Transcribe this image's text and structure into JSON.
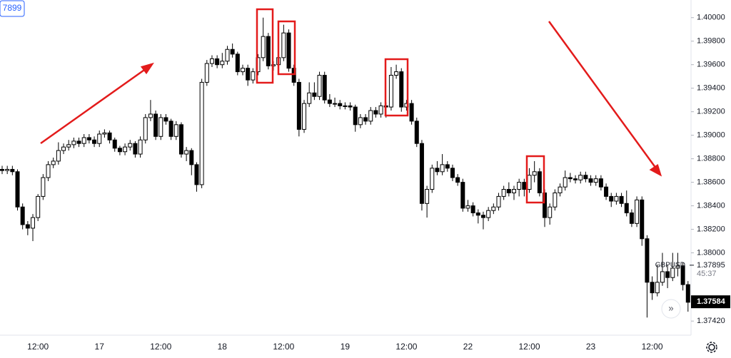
{
  "chart_data": {
    "type": "candlestick",
    "symbol": "GBPUSD",
    "symbol_price": {
      "value": 1.37895,
      "label": "1.37895"
    },
    "countdown": "45:37",
    "last_price": {
      "value": 1.37584,
      "label": "1.37584"
    },
    "corner_label": "7899",
    "up_color": "#ffffff",
    "down_color": "#000000",
    "edge_color": "#000000",
    "ylim": [
      1.373,
      1.4015
    ],
    "yticks": [
      {
        "value": 1.4,
        "label": "1.40000"
      },
      {
        "value": 1.398,
        "label": "1.39800"
      },
      {
        "value": 1.396,
        "label": "1.39600"
      },
      {
        "value": 1.394,
        "label": "1.39400"
      },
      {
        "value": 1.392,
        "label": "1.39200"
      },
      {
        "value": 1.39,
        "label": "1.39000"
      },
      {
        "value": 1.388,
        "label": "1.38800"
      },
      {
        "value": 1.386,
        "label": "1.38600"
      },
      {
        "value": 1.384,
        "label": "1.38400"
      },
      {
        "value": 1.382,
        "label": "1.38200"
      },
      {
        "value": 1.38,
        "label": "1.38000"
      },
      {
        "value": 1.3742,
        "label": "1.37420"
      }
    ],
    "categories": [
      null,
      null,
      null,
      null,
      null,
      null,
      null,
      "12:00",
      null,
      null,
      null,
      null,
      null,
      null,
      null,
      null,
      null,
      null,
      null,
      "17",
      null,
      null,
      null,
      null,
      null,
      null,
      null,
      null,
      null,
      null,
      null,
      "12:00",
      null,
      null,
      null,
      null,
      null,
      null,
      null,
      null,
      null,
      null,
      null,
      "18",
      null,
      null,
      null,
      null,
      null,
      null,
      null,
      null,
      null,
      null,
      null,
      "12:00",
      null,
      null,
      null,
      null,
      null,
      null,
      null,
      null,
      null,
      null,
      null,
      "19",
      null,
      null,
      null,
      null,
      null,
      null,
      null,
      null,
      null,
      null,
      null,
      "12:00",
      null,
      null,
      null,
      null,
      null,
      null,
      null,
      null,
      null,
      null,
      null,
      "22",
      null,
      null,
      null,
      null,
      null,
      null,
      null,
      null,
      null,
      null,
      null,
      "12:00",
      null,
      null,
      null,
      null,
      null,
      null,
      null,
      null,
      null,
      null,
      null,
      "23",
      null,
      null,
      null,
      null,
      null,
      null,
      null,
      null,
      null,
      null,
      null,
      "12:00",
      null,
      null,
      null,
      null,
      null,
      null,
      null
    ],
    "open": [
      1.3871,
      1.387,
      1.3871,
      1.3869,
      1.3839,
      1.3824,
      1.3821,
      1.383,
      1.3848,
      1.3864,
      1.3875,
      1.3878,
      1.3887,
      1.389,
      1.3892,
      1.3895,
      1.3893,
      1.3898,
      1.3896,
      1.3893,
      1.3901,
      1.3902,
      1.3896,
      1.3889,
      1.3886,
      1.389,
      1.3893,
      1.3884,
      1.3896,
      1.3915,
      1.3918,
      1.3899,
      1.3915,
      1.3912,
      1.3899,
      1.3909,
      1.3884,
      1.3887,
      1.3875,
      1.3858,
      1.3945,
      1.3961,
      1.3965,
      1.396,
      1.3963,
      1.3973,
      1.3969,
      1.3954,
      1.3957,
      1.3947,
      1.3954,
      1.3966,
      1.3984,
      1.3959,
      1.396,
      1.3966,
      1.3987,
      1.3957,
      1.3945,
      1.3905,
      1.3927,
      1.3936,
      1.3933,
      1.3951,
      1.393,
      1.3927,
      1.3927,
      1.3925,
      1.3925,
      1.3924,
      1.3909,
      1.3915,
      1.3912,
      1.3921,
      1.3918,
      1.3925,
      1.3924,
      1.3951,
      1.3954,
      1.3924,
      1.3927,
      1.3912,
      1.3893,
      1.3842,
      1.3854,
      1.3872,
      1.3869,
      1.3875,
      1.3872,
      1.3864,
      1.386,
      1.3838,
      1.384,
      1.3834,
      1.3832,
      1.383,
      1.3836,
      1.3839,
      1.3848,
      1.3854,
      1.3851,
      1.3854,
      1.386,
      1.3854,
      1.3866,
      1.3869,
      1.3851,
      1.383,
      1.3839,
      1.3851,
      1.3856,
      1.3864,
      1.3863,
      1.3862,
      1.3866,
      1.3863,
      1.386,
      1.3863,
      1.3856,
      1.3848,
      1.3844,
      1.3848,
      1.3842,
      1.3834,
      1.3825,
      1.3845,
      1.3812,
      1.3775,
      1.3766,
      1.3775,
      1.3784,
      1.3779,
      1.3787,
      1.3789,
      1.3773
    ],
    "high": [
      1.3874,
      1.3874,
      1.3874,
      1.3871,
      1.3842,
      1.3827,
      1.3833,
      1.385,
      1.3867,
      1.3878,
      1.3881,
      1.3894,
      1.3893,
      1.3896,
      1.3898,
      1.3898,
      1.3901,
      1.3901,
      1.3899,
      1.3904,
      1.3905,
      1.3904,
      1.3898,
      1.3891,
      1.3893,
      1.3896,
      1.3895,
      1.3899,
      1.3918,
      1.393,
      1.3921,
      1.3918,
      1.3918,
      1.3914,
      1.3912,
      1.3911,
      1.389,
      1.3889,
      1.3877,
      1.3948,
      1.3964,
      1.3968,
      1.3968,
      1.397,
      1.3976,
      1.3978,
      1.3971,
      1.396,
      1.396,
      1.3957,
      1.3969,
      1.4,
      1.3987,
      1.3963,
      1.3969,
      1.3994,
      1.399,
      1.396,
      1.3948,
      1.393,
      1.3945,
      1.3945,
      1.3954,
      1.3954,
      1.3935,
      1.3932,
      1.393,
      1.3928,
      1.3928,
      1.3926,
      1.3918,
      1.3918,
      1.3924,
      1.3924,
      1.3928,
      1.3928,
      1.3958,
      1.396,
      1.3957,
      1.393,
      1.393,
      1.3915,
      1.3896,
      1.3857,
      1.3875,
      1.3878,
      1.3884,
      1.3878,
      1.3875,
      1.3867,
      1.3863,
      1.3845,
      1.3843,
      1.3837,
      1.3835,
      1.3839,
      1.3842,
      1.3851,
      1.3857,
      1.386,
      1.3857,
      1.3863,
      1.3863,
      1.3872,
      1.3878,
      1.3872,
      1.3854,
      1.3842,
      1.3854,
      1.3859,
      1.387,
      1.3868,
      1.3866,
      1.3869,
      1.3869,
      1.3866,
      1.3866,
      1.3866,
      1.3859,
      1.3851,
      1.3851,
      1.3851,
      1.3853,
      1.3837,
      1.3848,
      1.3848,
      1.3815,
      1.378,
      1.379,
      1.38,
      1.379,
      1.38,
      1.38,
      1.3792,
      1.3776
    ],
    "low": [
      1.3867,
      1.3867,
      1.3866,
      1.3836,
      1.382,
      1.3815,
      1.381,
      1.3827,
      1.3845,
      1.3861,
      1.3872,
      1.3875,
      1.3884,
      1.3887,
      1.3889,
      1.389,
      1.389,
      1.3893,
      1.389,
      1.389,
      1.3898,
      1.3893,
      1.3886,
      1.3883,
      1.3883,
      1.3887,
      1.3881,
      1.3881,
      1.3893,
      1.3912,
      1.3896,
      1.3896,
      1.3909,
      1.3896,
      1.3896,
      1.3881,
      1.3878,
      1.3866,
      1.3852,
      1.3855,
      1.3942,
      1.3958,
      1.3957,
      1.3957,
      1.396,
      1.3966,
      1.3951,
      1.3951,
      1.3942,
      1.3944,
      1.3951,
      1.3963,
      1.3956,
      1.3955,
      1.3957,
      1.3963,
      1.3954,
      1.3942,
      1.3899,
      1.3902,
      1.3924,
      1.393,
      1.393,
      1.3927,
      1.3924,
      1.3924,
      1.3922,
      1.3922,
      1.3921,
      1.3903,
      1.3906,
      1.3909,
      1.3909,
      1.3915,
      1.3915,
      1.3915,
      1.3921,
      1.3948,
      1.392,
      1.3921,
      1.3909,
      1.389,
      1.3836,
      1.383,
      1.3851,
      1.3866,
      1.3866,
      1.3869,
      1.3861,
      1.3857,
      1.3835,
      1.3835,
      1.3831,
      1.3825,
      1.382,
      1.3827,
      1.3833,
      1.3836,
      1.3845,
      1.3848,
      1.3845,
      1.3848,
      1.3848,
      1.3851,
      1.386,
      1.3848,
      1.3822,
      1.3824,
      1.3836,
      1.3848,
      1.3853,
      1.386,
      1.3859,
      1.3859,
      1.386,
      1.3857,
      1.3857,
      1.3853,
      1.3845,
      1.3839,
      1.3841,
      1.3839,
      1.3831,
      1.3822,
      1.3822,
      1.3806,
      1.3745,
      1.376,
      1.3763,
      1.3772,
      1.377,
      1.3776,
      1.378,
      1.3768,
      1.375
    ],
    "close": [
      1.387,
      1.3871,
      1.3869,
      1.3839,
      1.3824,
      1.3821,
      1.383,
      1.3848,
      1.3864,
      1.3875,
      1.3878,
      1.3887,
      1.389,
      1.3892,
      1.3895,
      1.3893,
      1.3898,
      1.3896,
      1.3893,
      1.3901,
      1.3902,
      1.3896,
      1.3889,
      1.3886,
      1.389,
      1.3893,
      1.3884,
      1.3896,
      1.3915,
      1.3918,
      1.3899,
      1.3915,
      1.3912,
      1.3899,
      1.3909,
      1.3884,
      1.3887,
      1.3875,
      1.3858,
      1.3945,
      1.3961,
      1.3965,
      1.396,
      1.3963,
      1.3973,
      1.3969,
      1.3954,
      1.3957,
      1.3947,
      1.3954,
      1.3966,
      1.3984,
      1.3959,
      1.396,
      1.3966,
      1.3987,
      1.3957,
      1.3945,
      1.3905,
      1.3927,
      1.3936,
      1.3933,
      1.3951,
      1.393,
      1.3927,
      1.3927,
      1.3925,
      1.3925,
      1.3924,
      1.3909,
      1.3915,
      1.3912,
      1.3921,
      1.3918,
      1.3925,
      1.3924,
      1.3951,
      1.3954,
      1.3924,
      1.3927,
      1.3912,
      1.3893,
      1.3842,
      1.3854,
      1.3872,
      1.3869,
      1.3875,
      1.3872,
      1.3864,
      1.386,
      1.3838,
      1.384,
      1.3834,
      1.3832,
      1.383,
      1.3836,
      1.3839,
      1.3848,
      1.3854,
      1.3851,
      1.3854,
      1.386,
      1.3854,
      1.3866,
      1.3869,
      1.3851,
      1.383,
      1.3839,
      1.3851,
      1.3856,
      1.3864,
      1.3863,
      1.3862,
      1.3866,
      1.3863,
      1.386,
      1.3863,
      1.3856,
      1.3848,
      1.3844,
      1.3848,
      1.3842,
      1.3834,
      1.3825,
      1.3845,
      1.3812,
      1.3775,
      1.3766,
      1.3775,
      1.3784,
      1.3779,
      1.3787,
      1.3789,
      1.3773,
      1.3758
    ]
  }
}
